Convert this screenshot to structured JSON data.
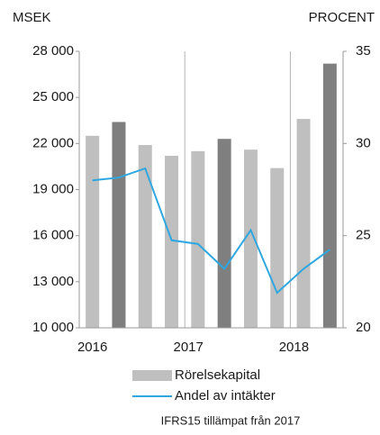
{
  "chart_data": {
    "type": "combo",
    "y_label": "MSEK",
    "y2_label": "PROCENT",
    "categories": [
      "2016",
      null,
      null,
      null,
      "2017",
      null,
      null,
      null,
      "2018",
      null
    ],
    "series": [
      {
        "name": "Rörelsekapital",
        "type": "bar",
        "color": "#bfbfbf",
        "colors": [
          "#bfbfbf",
          "#7f7f7f",
          "#bfbfbf",
          "#bfbfbf",
          "#bfbfbf",
          "#7f7f7f",
          "#bfbfbf",
          "#bfbfbf",
          "#bfbfbf",
          "#7f7f7f"
        ],
        "values": [
          22500,
          23400,
          21900,
          21200,
          21500,
          22300,
          21600,
          20400,
          23600,
          27200
        ]
      },
      {
        "name": "Andel av intäkter",
        "type": "line",
        "axis": "y2",
        "color": "#2ea7e0",
        "values": [
          28.0,
          28.15,
          28.65,
          24.75,
          24.55,
          23.2,
          25.3,
          21.9,
          23.2,
          24.25
        ]
      }
    ],
    "ylim": [
      10000,
      28000
    ],
    "yticks": [
      {
        "value": 10000,
        "label": "10 000"
      },
      {
        "value": 13000,
        "label": "13 000"
      },
      {
        "value": 16000,
        "label": "16 000"
      },
      {
        "value": 19000,
        "label": "19 000"
      },
      {
        "value": 22000,
        "label": "22 000"
      },
      {
        "value": 25000,
        "label": "25 000"
      },
      {
        "value": 28000,
        "label": "28 000"
      }
    ],
    "y2lim": [
      20,
      35
    ],
    "y2ticks": [
      20,
      25,
      30,
      35
    ],
    "note": "IFRS15 tillämpat från 2017"
  }
}
